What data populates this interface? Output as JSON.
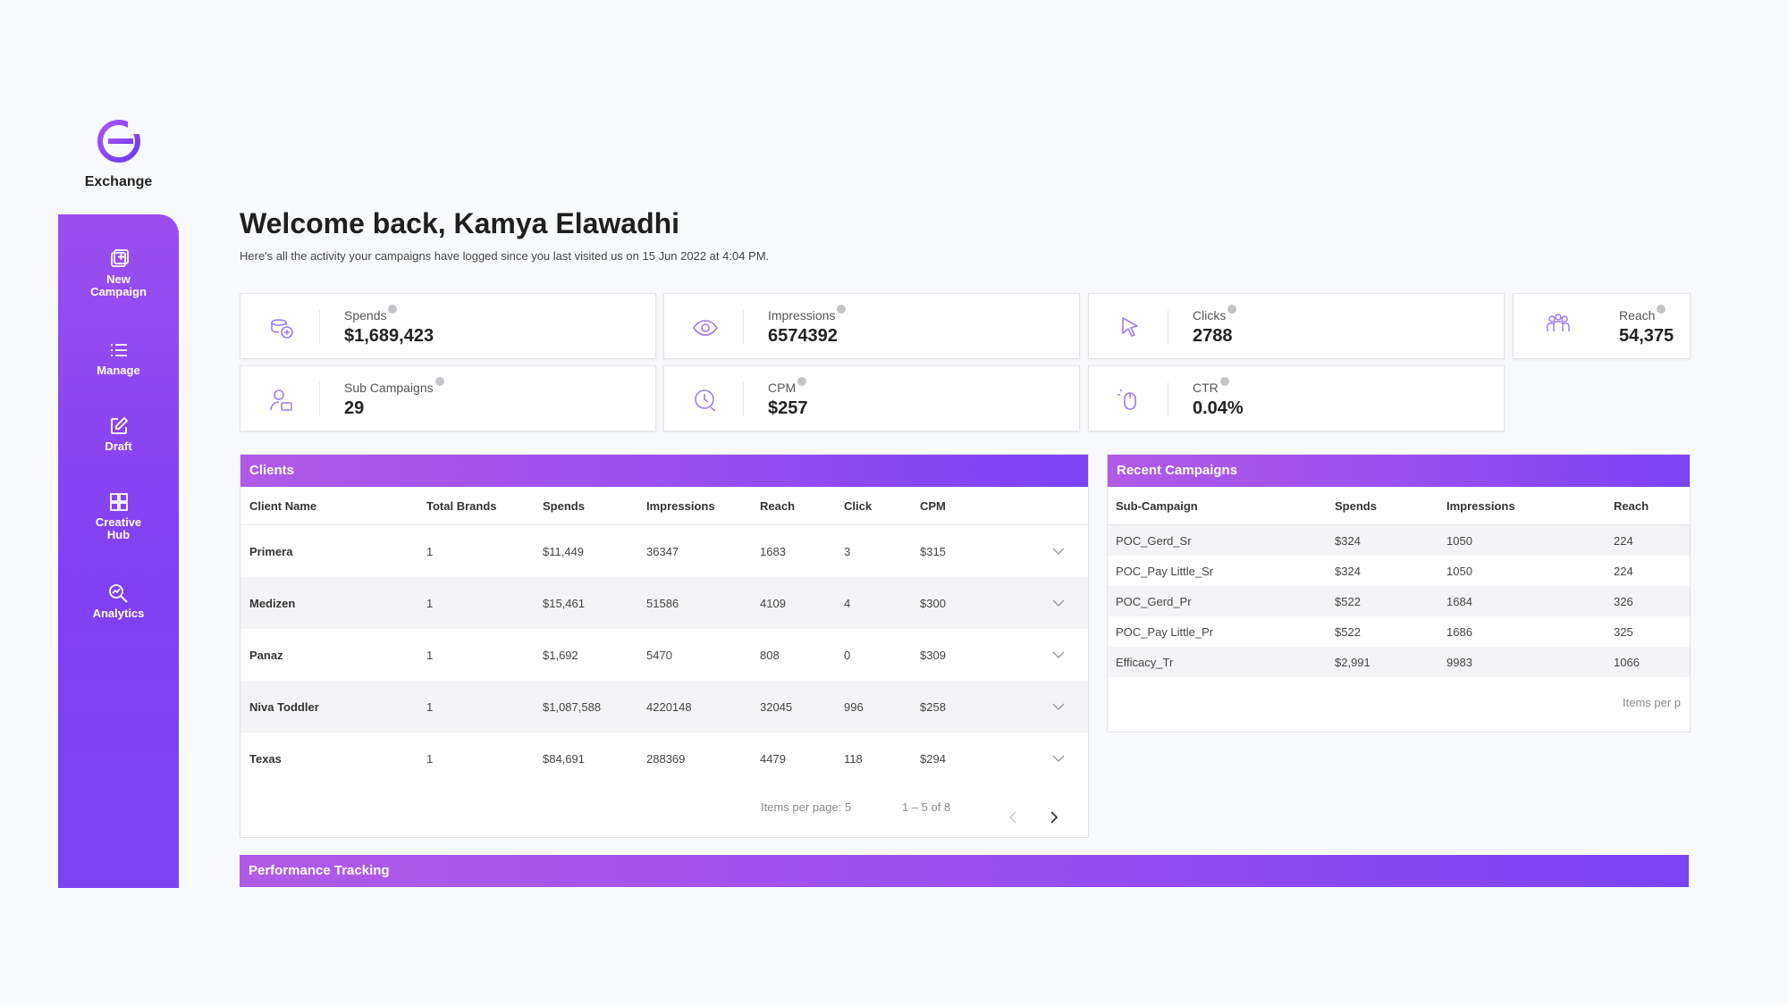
{
  "brand": {
    "name": "Exchange",
    "accent": "#8a45f0"
  },
  "nav": [
    {
      "label": "New\nCampaign",
      "icon": "new-campaign-icon"
    },
    {
      "label": "Manage",
      "icon": "list-icon"
    },
    {
      "label": "Draft",
      "icon": "edit-icon"
    },
    {
      "label": "Creative\nHub",
      "icon": "grid-icon"
    },
    {
      "label": "Analytics",
      "icon": "analytics-icon"
    }
  ],
  "welcome": {
    "title": "Welcome back, Kamya Elawadhi",
    "subtitle": "Here's all the activity your campaigns have logged since you last visited us on 15 Jun 2022 at 4:04 PM."
  },
  "stats": {
    "spends": {
      "label": "Spends",
      "value": "$1,689,423",
      "icon": "coins-icon"
    },
    "impressions": {
      "label": "Impressions",
      "value": "6574392",
      "icon": "eye-icon"
    },
    "clicks": {
      "label": "Clicks",
      "value": "2788",
      "icon": "cursor-icon"
    },
    "reach": {
      "label": "Reach",
      "value": "54,375",
      "icon": "people-icon"
    },
    "sub_campaigns": {
      "label": "Sub Campaigns",
      "value": "29",
      "icon": "user-campaign-icon"
    },
    "cpm": {
      "label": "CPM",
      "value": "$257",
      "icon": "clock-icon"
    },
    "ctr": {
      "label": "CTR",
      "value": "0.04%",
      "icon": "mouse-icon"
    }
  },
  "clients": {
    "title": "Clients",
    "columns": [
      "Client Name",
      "Total Brands",
      "Spends",
      "Impressions",
      "Reach",
      "Click",
      "CPM"
    ],
    "rows": [
      [
        "Primera",
        "1",
        "$11,449",
        "36347",
        "1683",
        "3",
        "$315"
      ],
      [
        "Medizen",
        "1",
        "$15,461",
        "51586",
        "4109",
        "4",
        "$300"
      ],
      [
        "Panaz",
        "1",
        "$1,692",
        "5470",
        "808",
        "0",
        "$309"
      ],
      [
        "Niva Toddler",
        "1",
        "$1,087,588",
        "4220148",
        "32045",
        "996",
        "$258"
      ],
      [
        "Texas",
        "1",
        "$84,691",
        "288369",
        "4479",
        "118",
        "$294"
      ]
    ],
    "items_per_page": "Items per page: 5",
    "range": "1 – 5 of 8"
  },
  "recent": {
    "title": "Recent Campaigns",
    "columns": [
      "Sub-Campaign",
      "Spends",
      "Impressions",
      "Reach"
    ],
    "rows": [
      [
        "POC_Gerd_Sr",
        "$324",
        "1050",
        "224"
      ],
      [
        "POC_Pay Little_Sr",
        "$324",
        "1050",
        "224"
      ],
      [
        "POC_Gerd_Pr",
        "$522",
        "1684",
        "326"
      ],
      [
        "POC_Pay Little_Pr",
        "$522",
        "1686",
        "325"
      ],
      [
        "Efficacy_Tr",
        "$2,991",
        "9983",
        "1066"
      ]
    ],
    "items_per_page": "Items per p"
  },
  "performance": {
    "title": "Performance Tracking"
  }
}
